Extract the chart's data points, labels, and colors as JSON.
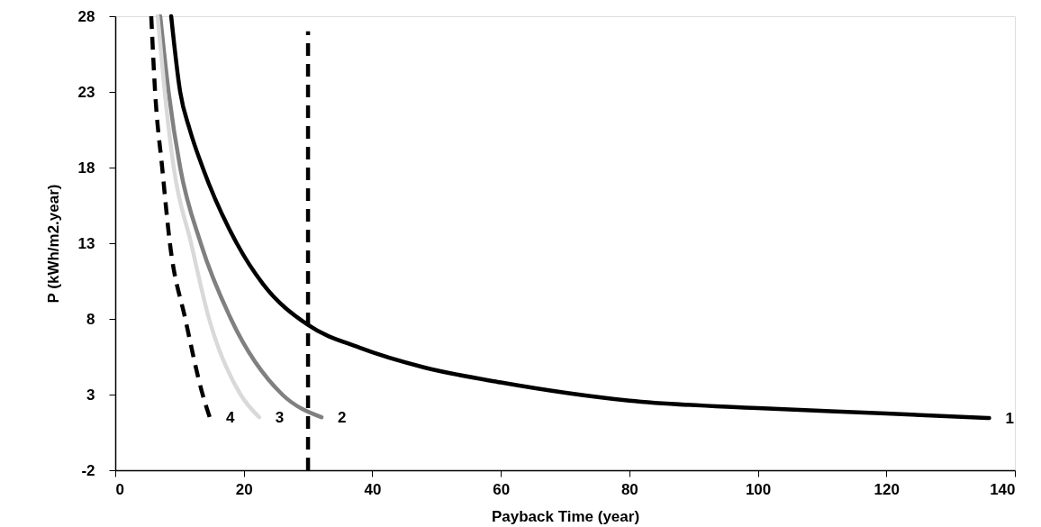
{
  "chart_data": {
    "type": "line",
    "xlabel": "Payback Time (year)",
    "ylabel": "P (kWh/m2.year)",
    "xlim": [
      0,
      140
    ],
    "xticks": [
      0,
      20,
      40,
      60,
      80,
      100,
      120,
      140
    ],
    "ylim": [
      -2,
      28
    ],
    "yticks": [
      -2,
      3,
      8,
      13,
      18,
      23,
      28
    ],
    "grid": false,
    "marker": "none",
    "series": [
      {
        "name": "1",
        "color": "#000000",
        "line_style": "solid",
        "x": [
          8.7,
          10.1,
          11.6,
          13.6,
          18.9,
          23,
          30,
          38,
          48,
          60,
          80,
          100,
          120,
          136
        ],
        "values": [
          28,
          23,
          20.5,
          18,
          13,
          10.3,
          7.6,
          6.1,
          4.8,
          3.8,
          2.6,
          2.1,
          1.75,
          1.45
        ]
      },
      {
        "name": "2",
        "color": "#808080",
        "line_style": "solid",
        "x": [
          7.0,
          8.3,
          10.1,
          13.3,
          18.0,
          26.0,
          32.1
        ],
        "values": [
          28,
          23,
          18,
          13,
          8,
          3,
          1.5
        ]
      },
      {
        "name": "3",
        "color": "#d9d9d9",
        "line_style": "solid",
        "x": [
          6.6,
          7.7,
          9.1,
          11.8,
          14.6,
          19.5,
          22.4
        ],
        "values": [
          28,
          23,
          18,
          13,
          8,
          3,
          1.5
        ]
      },
      {
        "name": "4",
        "color": "#000000",
        "line_style": "dashed",
        "x": [
          5.6,
          6.2,
          7.3,
          8.5,
          10.9,
          13.6,
          14.7
        ],
        "values": [
          28,
          23,
          18,
          13,
          8,
          3,
          1.5
        ]
      },
      {
        "color": "#000000",
        "line_style": "dashed",
        "x": [
          30,
          30
        ],
        "values": [
          -2,
          27
        ]
      }
    ]
  }
}
